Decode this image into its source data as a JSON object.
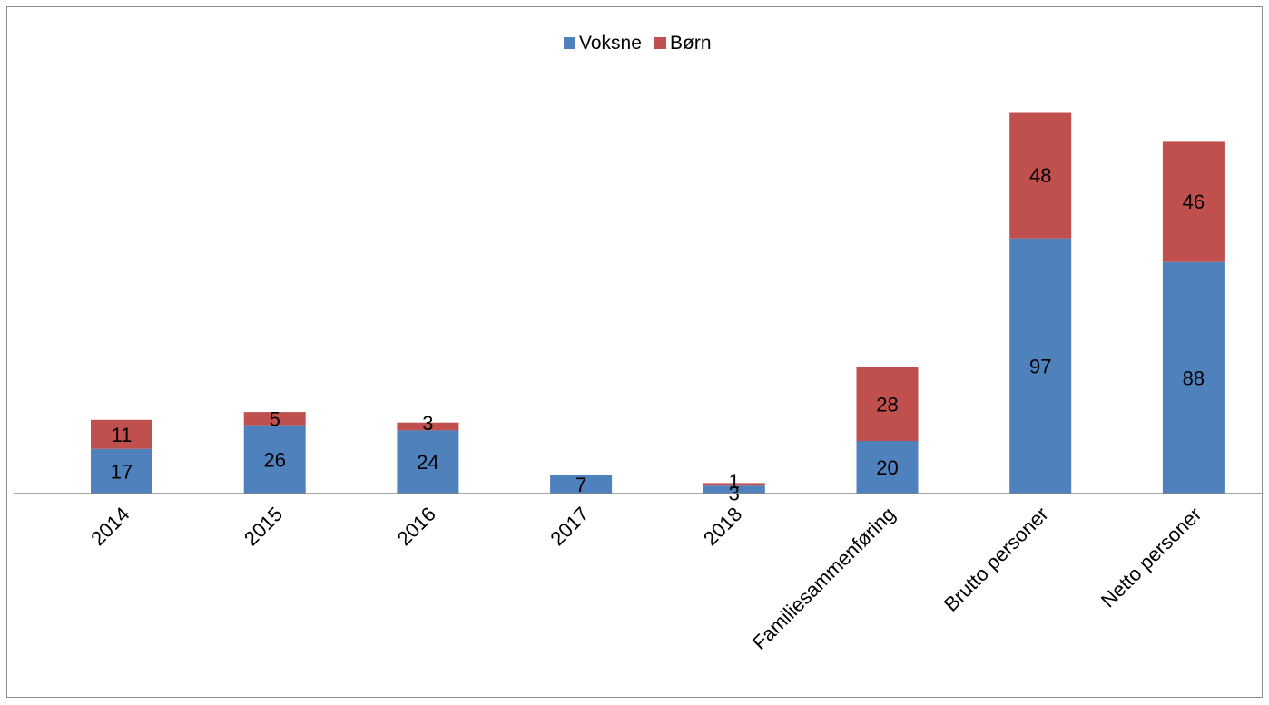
{
  "chart_data": {
    "type": "bar",
    "stacked": true,
    "title": "",
    "xlabel": "",
    "ylabel": "",
    "ylim": [
      0,
      155
    ],
    "grid": false,
    "legend_position": "top-center",
    "categories": [
      "2014",
      "2015",
      "2016",
      "2017",
      "2018",
      "Familiesammenføring",
      "Brutto personer",
      "Netto personer"
    ],
    "series": [
      {
        "name": "Voksne",
        "color": "#4F81BD",
        "values": [
          17,
          26,
          24,
          7,
          3,
          20,
          97,
          88
        ],
        "labels": [
          "17",
          "26",
          "24",
          "7",
          "3",
          "20",
          "97",
          "88"
        ]
      },
      {
        "name": "Børn",
        "color": "#C0504D",
        "values": [
          11,
          5,
          3,
          0,
          1,
          28,
          48,
          46
        ],
        "labels": [
          "11",
          "5",
          "3",
          "",
          "1",
          "28",
          "48",
          "46"
        ]
      }
    ]
  }
}
